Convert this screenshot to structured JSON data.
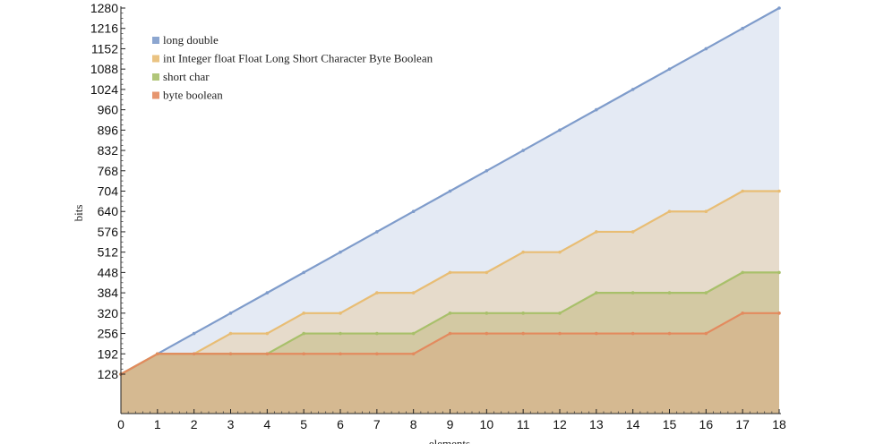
{
  "chart_data": {
    "type": "area",
    "xlabel": "elements",
    "ylabel": "bits",
    "xlim": [
      0,
      18
    ],
    "ylim": [
      0,
      1280
    ],
    "x": [
      0,
      1,
      2,
      3,
      4,
      5,
      6,
      7,
      8,
      9,
      10,
      11,
      12,
      13,
      14,
      15,
      16,
      17,
      18
    ],
    "xticks": [
      "0",
      "1",
      "2",
      "3",
      "4",
      "5",
      "6",
      "7",
      "8",
      "9",
      "10",
      "11",
      "12",
      "13",
      "14",
      "15",
      "16",
      "17",
      "18"
    ],
    "yticks": [
      "128",
      "192",
      "256",
      "320",
      "384",
      "448",
      "512",
      "576",
      "640",
      "704",
      "768",
      "832",
      "896",
      "960",
      "1024",
      "1088",
      "1152",
      "1216",
      "1280"
    ],
    "legend_position": "top-left",
    "series": [
      {
        "name": "long double",
        "color": "#7f9ccb",
        "fill": "#dfe6f2",
        "values": [
          128,
          192,
          256,
          320,
          384,
          448,
          512,
          576,
          640,
          704,
          768,
          832,
          896,
          960,
          1024,
          1088,
          1152,
          1216,
          1280
        ]
      },
      {
        "name": "int Integer float Float Long Short Character Byte Boolean",
        "color": "#e8bd74",
        "fill": "#e6d8c3",
        "values": [
          128,
          192,
          192,
          256,
          256,
          320,
          320,
          384,
          384,
          448,
          448,
          512,
          512,
          576,
          576,
          640,
          640,
          704,
          704
        ]
      },
      {
        "name": "short char",
        "color": "#a8c06a",
        "fill": "#cfc59c",
        "values": [
          128,
          192,
          192,
          192,
          192,
          256,
          256,
          256,
          256,
          320,
          320,
          320,
          320,
          384,
          384,
          384,
          384,
          448,
          448
        ]
      },
      {
        "name": "byte boolean",
        "color": "#e38a5e",
        "fill": "#d5b68e",
        "values": [
          128,
          192,
          192,
          192,
          192,
          192,
          192,
          192,
          192,
          256,
          256,
          256,
          256,
          256,
          256,
          256,
          256,
          320,
          320
        ]
      }
    ]
  }
}
